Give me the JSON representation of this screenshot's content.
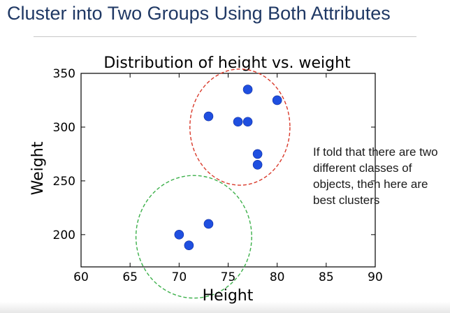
{
  "slide": {
    "title": "Cluster into Two Groups Using Both Attributes",
    "annotation": "If told that there are two different classes of objects, then here are best clusters"
  },
  "colors": {
    "title": "#1f3864",
    "points": "#1f4fe0",
    "cluster_upper": "#d93a2b",
    "cluster_lower": "#3cb04a"
  },
  "chart_data": {
    "type": "scatter",
    "title": "Distribution of height vs. weight",
    "xlabel": "Height",
    "ylabel": "Weight",
    "xlim": [
      60,
      90
    ],
    "ylim": [
      170,
      350
    ],
    "x_ticks": [
      60,
      65,
      70,
      75,
      80,
      85,
      90
    ],
    "y_ticks": [
      200,
      250,
      300,
      350
    ],
    "grid": false,
    "points": [
      {
        "x": 70,
        "y": 200
      },
      {
        "x": 71,
        "y": 190
      },
      {
        "x": 73,
        "y": 210
      },
      {
        "x": 73,
        "y": 310
      },
      {
        "x": 76,
        "y": 305
      },
      {
        "x": 77,
        "y": 305
      },
      {
        "x": 77,
        "y": 335
      },
      {
        "x": 78,
        "y": 275
      },
      {
        "x": 78,
        "y": 265
      },
      {
        "x": 80,
        "y": 325
      }
    ],
    "clusters": [
      {
        "color": "cluster_upper",
        "style": "dashed",
        "center": {
          "x": 76.2,
          "y": 300
        },
        "radius_x": 5.1,
        "radius_y": 54
      },
      {
        "color": "cluster_lower",
        "style": "dashed",
        "center": {
          "x": 71.5,
          "y": 198
        },
        "radius_x": 5.9,
        "radius_y": 57
      }
    ]
  }
}
